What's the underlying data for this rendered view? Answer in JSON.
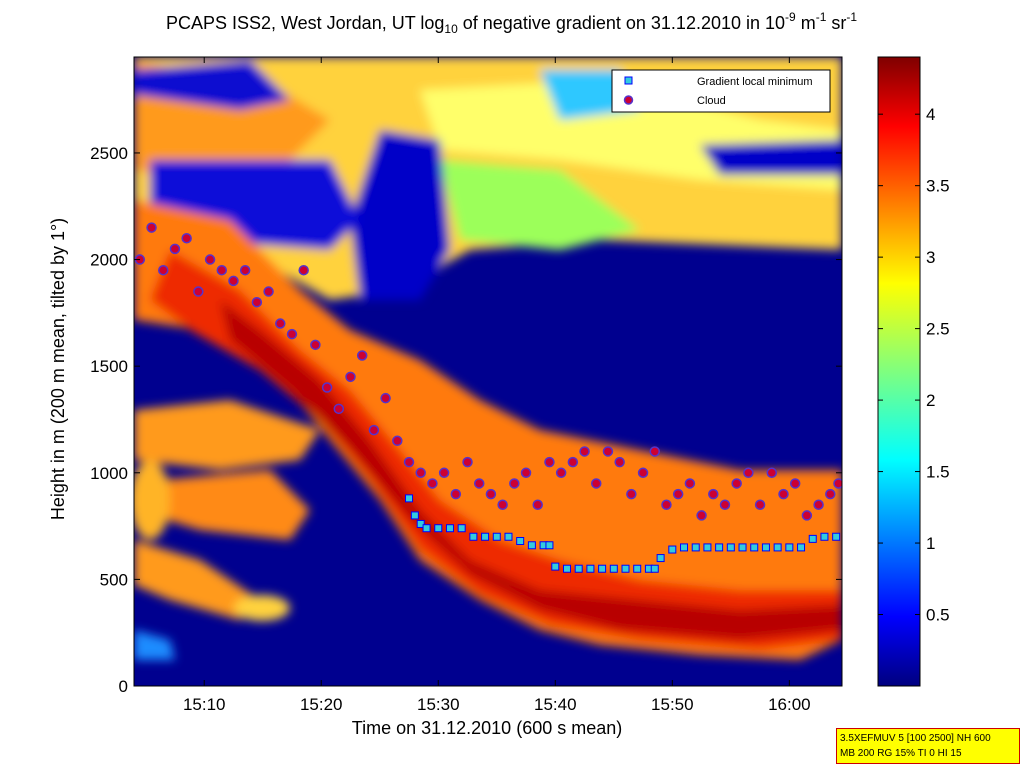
{
  "title": {
    "prefix": "PCAPS ISS2, West Jordan, UT log",
    "sub": "10",
    "middle": " of negative gradient on 31.12.2010 in 10",
    "sup1": "-9",
    "unit1": " m",
    "sup2": "-1",
    "unit2": " sr",
    "sup3": "-1"
  },
  "info_box": {
    "line1": "3.5XEFMUV 5 [100 2500] NH 600",
    "line2": "MB 200 RG 15% TI 0 HI 15"
  },
  "colors": {
    "cloud_marker_fill": "#cc0033",
    "cloud_marker_edge": "#5533cc",
    "gradient_marker_fill": "#33ccdd",
    "gradient_marker_edge": "#0000ff",
    "info_box_bg": "#ffff00",
    "info_box_border": "#cc0000"
  },
  "chart_data": {
    "type": "heatmap",
    "xlabel": "Time on 31.12.2010 (600 s mean)",
    "ylabel": "Height in m (200 m mean, tilted by 1°)",
    "xlim": [
      904,
      964.5
    ],
    "ylim": [
      0,
      2950
    ],
    "x_ticks": [
      {
        "value": 910,
        "label": "15:10"
      },
      {
        "value": 920,
        "label": "15:20"
      },
      {
        "value": 930,
        "label": "15:30"
      },
      {
        "value": 940,
        "label": "15:40"
      },
      {
        "value": 950,
        "label": "15:50"
      },
      {
        "value": 960,
        "label": "16:00"
      }
    ],
    "y_ticks": [
      0,
      500,
      1000,
      1500,
      2000,
      2500
    ],
    "colorbar": {
      "colormap": "jet",
      "range": [
        0,
        4.4
      ],
      "ticks": [
        "0.5",
        "1",
        "1.5",
        "2",
        "2.5",
        "3",
        "3.5",
        "4"
      ]
    },
    "legend": {
      "position": "top-right",
      "entries": [
        "Gradient local minimum",
        "Cloud"
      ]
    },
    "series": [
      {
        "name": "Cloud",
        "marker": "circle",
        "x": [
          904.5,
          905.5,
          906.5,
          907.5,
          908.5,
          909.5,
          910.5,
          911.5,
          912.5,
          913.5,
          914.5,
          915.5,
          916.5,
          917.5,
          918.5,
          919.5,
          920.5,
          921.5,
          922.5,
          923.5,
          924.5,
          925.5,
          926.5,
          927.5,
          928.5,
          929.5,
          930.5,
          931.5,
          932.5,
          933.5,
          934.5,
          935.5,
          936.5,
          937.5,
          938.5,
          939.5,
          940.5,
          941.5,
          942.5,
          943.5,
          944.5,
          945.5,
          946.5,
          947.5,
          948.5,
          949.5,
          950.5,
          951.5,
          952.5,
          953.5,
          954.5,
          955.5,
          956.5,
          957.5,
          958.5,
          959.5,
          960.5,
          961.5,
          962.5,
          963.5,
          964.2
        ],
        "y": [
          2000,
          2150,
          1950,
          2050,
          2100,
          1850,
          2000,
          1950,
          1900,
          1950,
          1800,
          1850,
          1700,
          1650,
          1950,
          1600,
          1400,
          1300,
          1450,
          1550,
          1200,
          1350,
          1150,
          1050,
          1000,
          950,
          1000,
          900,
          1050,
          950,
          900,
          850,
          950,
          1000,
          850,
          1050,
          1000,
          1050,
          1100,
          950,
          1100,
          1050,
          900,
          1000,
          1100,
          850,
          900,
          950,
          800,
          900,
          850,
          950,
          1000,
          850,
          1000,
          900,
          950,
          800,
          850,
          900,
          950
        ]
      },
      {
        "name": "Gradient local minimum",
        "marker": "square",
        "x": [
          927.5,
          928,
          928.5,
          929,
          930,
          931,
          932,
          933,
          934,
          935,
          936,
          937,
          938,
          939,
          939.5,
          940,
          941,
          942,
          943,
          944,
          945,
          946,
          947,
          948,
          948.5,
          949,
          950,
          951,
          952,
          953,
          954,
          955,
          956,
          957,
          958,
          959,
          960,
          961,
          962,
          963,
          964
        ],
        "y": [
          880,
          800,
          760,
          740,
          740,
          740,
          740,
          700,
          700,
          700,
          700,
          680,
          660,
          660,
          660,
          560,
          550,
          550,
          550,
          550,
          550,
          550,
          550,
          550,
          550,
          600,
          640,
          650,
          650,
          650,
          650,
          650,
          650,
          650,
          650,
          650,
          650,
          650,
          690,
          700,
          700
        ]
      }
    ]
  }
}
